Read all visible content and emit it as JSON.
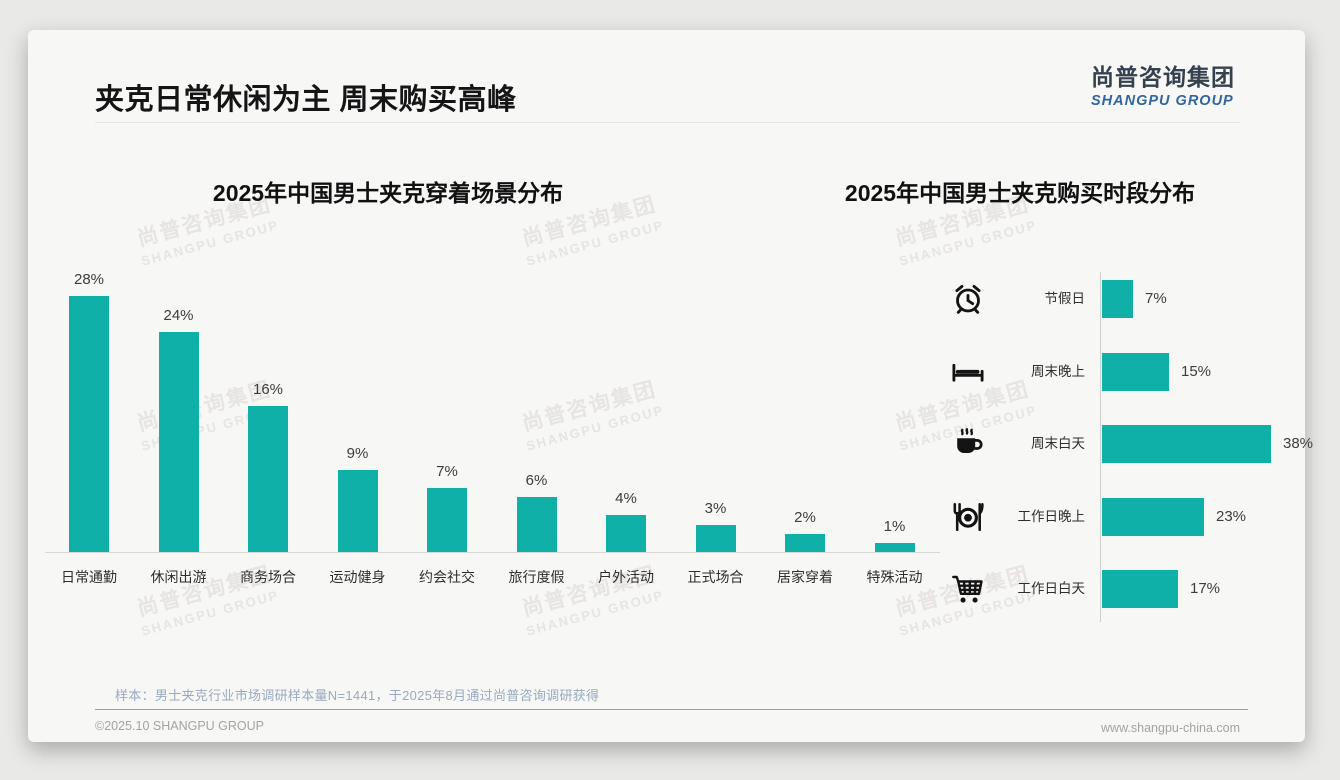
{
  "page": {
    "title": "夹克日常休闲为主 周末购买高峰",
    "logo": {
      "cn": "尚普咨询集团",
      "en": "SHANGPU GROUP"
    },
    "watermark": {
      "cn": "尚普咨询集团",
      "en": "SHANGPU GROUP"
    },
    "footnote": "样本：男士夹克行业市场调研样本量N=1441，于2025年8月通过尚普咨询调研获得",
    "footer": {
      "left": "©2025.10 SHANGPU GROUP",
      "right": "www.shangpu-china.com"
    }
  },
  "colors": {
    "accent_teal": "#0fb0a8",
    "logo_cn": "#36414f",
    "logo_en": "#31669f",
    "footnote_blue_gray": "#9aa9bf",
    "footer_gray": "#a3a3a3"
  },
  "chart_data": [
    {
      "type": "bar",
      "orientation": "vertical",
      "title": "2025年中国男士夹克穿着场景分布",
      "categories": [
        "日常通勤",
        "休闲出游",
        "商务场合",
        "运动健身",
        "约会社交",
        "旅行度假",
        "户外活动",
        "正式场合",
        "居家穿着",
        "特殊活动"
      ],
      "values": [
        28,
        24,
        16,
        9,
        7,
        6,
        4,
        3,
        2,
        1
      ],
      "unit": "%",
      "ylim": [
        0,
        30
      ],
      "grid": false,
      "data_labels": true,
      "bar_color": "#0fb0a8"
    },
    {
      "type": "bar",
      "orientation": "horizontal",
      "title": "2025年中国男士夹克购买时段分布",
      "categories": [
        "节假日",
        "周末晚上",
        "周末白天",
        "工作日晚上",
        "工作日白天"
      ],
      "values": [
        7,
        15,
        38,
        23,
        17
      ],
      "icons": [
        "alarm-clock-icon",
        "bed-icon",
        "coffee-icon",
        "dining-icon",
        "cart-icon"
      ],
      "unit": "%",
      "xlim": [
        0,
        40
      ],
      "grid": false,
      "data_labels": true,
      "bar_color": "#0fb0a8"
    }
  ]
}
